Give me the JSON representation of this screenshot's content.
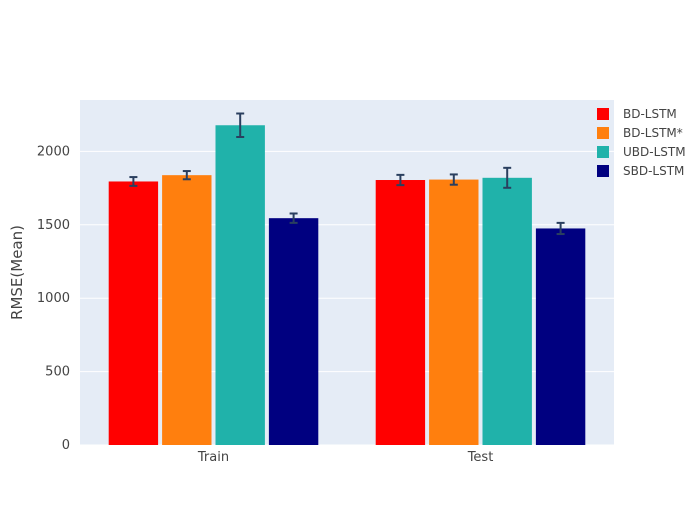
{
  "chart_data": {
    "type": "bar",
    "title": "",
    "xlabel": "",
    "ylabel": "RMSE(Mean)",
    "categories": [
      "Train",
      "Test"
    ],
    "ylim": [
      0,
      2350
    ],
    "yticks": [
      0,
      500,
      1000,
      1500,
      2000
    ],
    "grid": true,
    "legend_position": "top-right",
    "series": [
      {
        "name": "BD-LSTM",
        "color": "#ff0000",
        "values": [
          1795,
          1805
        ],
        "errors": [
          30,
          35
        ]
      },
      {
        "name": "BD-LSTM*",
        "color": "#ff7f0e",
        "values": [
          1838,
          1808
        ],
        "errors": [
          28,
          35
        ]
      },
      {
        "name": "UBD-LSTM",
        "color": "#20b2aa",
        "values": [
          2178,
          1820
        ],
        "errors": [
          80,
          68
        ]
      },
      {
        "name": "SBD-LSTM",
        "color": "#000080",
        "values": [
          1545,
          1475
        ],
        "errors": [
          32,
          38
        ]
      }
    ]
  }
}
